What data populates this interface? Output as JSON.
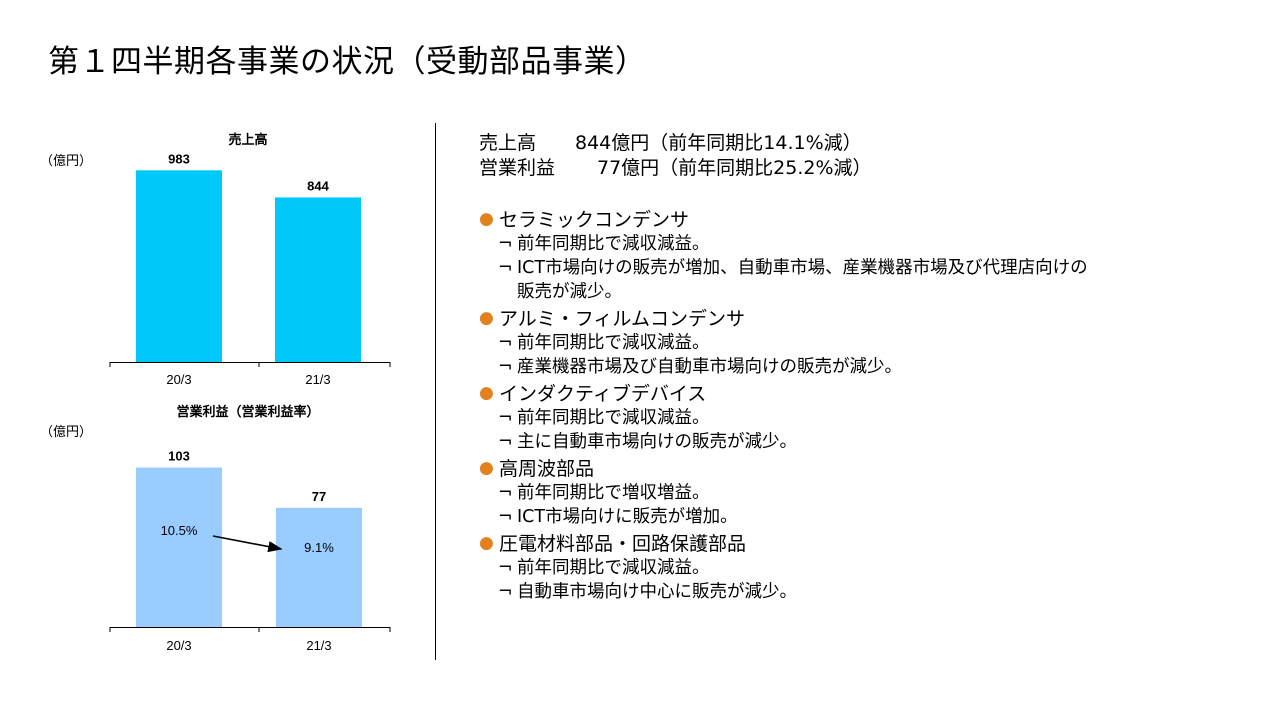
{
  "page_title": "第１四半期各事業の状況（受動部品事業）",
  "summary": [
    {
      "label": "売上高",
      "value": "844億円（前年同期比14.1%減）"
    },
    {
      "label": "営業利益",
      "value": "77億円（前年同期比25.2%減）"
    }
  ],
  "segments": [
    {
      "name": "セラミックコンデンサ",
      "notes": [
        "前年同期比で減収減益。",
        "ICT市場向けの販売が増加、自動車市場、産業機器市場及び代理店向けの\n販売が減少。"
      ]
    },
    {
      "name": "アルミ・フィルムコンデンサ",
      "notes": [
        "前年同期比で減収減益。",
        "産業機器市場及び自動車市場向けの販売が減少。"
      ]
    },
    {
      "name": "インダクティブデバイス",
      "notes": [
        "前年同期比で減収減益。",
        "主に自動車市場向けの販売が減少。"
      ]
    },
    {
      "name": "高周波部品",
      "notes": [
        "前年同期比で増収増益。",
        "ICT市場向けに販売が増加。"
      ]
    },
    {
      "name": "圧電材料部品・回路保護部品",
      "notes": [
        "前年同期比で減収減益。",
        "自動車市場向け中心に販売が減少。"
      ]
    }
  ],
  "icons": {
    "bullet": "●",
    "note_mark": "¬"
  },
  "colors": {
    "sales_bar": "#00c8f8",
    "profit_bar": "#99ccff",
    "bullet": "#e2811d"
  },
  "chart_data": [
    {
      "type": "bar",
      "title": "売上高",
      "unit_label": "（億円）",
      "categories": [
        "20/3",
        "21/3"
      ],
      "values": [
        983,
        844
      ],
      "ylim": [
        0,
        1000
      ],
      "grid": false,
      "legend": "none"
    },
    {
      "type": "bar",
      "title": "営業利益（営業利益率）",
      "unit_label": "（億円）",
      "categories": [
        "20/3",
        "21/3"
      ],
      "values": [
        103,
        77
      ],
      "margin_labels": [
        "10.5%",
        "9.1%"
      ],
      "ylim": [
        0,
        115
      ],
      "grid": false,
      "legend": "none"
    }
  ]
}
